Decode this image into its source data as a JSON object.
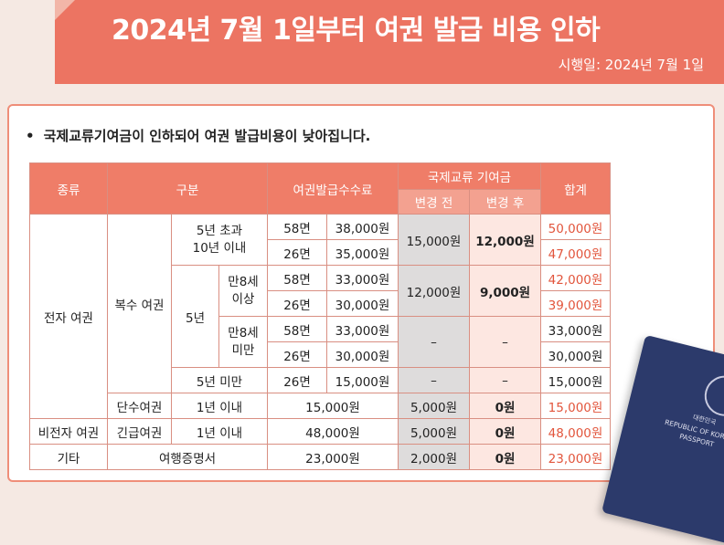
{
  "header": {
    "title": "2024년 7월 1일부터 여권 발급 비용 인하",
    "effective_date": "시행일: 2024년 7월 1일"
  },
  "notice": {
    "bullet": "•",
    "text": "국제교류기여금이 인하되어 여권 발급비용이 낮아집니다."
  },
  "table": {
    "headers": {
      "type": "종류",
      "category": "구분",
      "issue_fee": "여권발급수수료",
      "contribution": "국제교류 기여금",
      "before": "변경 전",
      "after": "변경 후",
      "total": "합계"
    },
    "labels": {
      "electronic": "전자 여권",
      "multi": "복수 여권",
      "over5": "5년 초과\n10년 이내",
      "five_years": "5년",
      "age8_over": "만8세\n이상",
      "age8_under": "만8세\n미만",
      "under5": "5년 미만",
      "single": "단수여권",
      "within1_single": "1년 이내",
      "non_electronic": "비전자 여권",
      "emergency": "긴급여권",
      "within1_emergency": "1년 이내",
      "other": "기타",
      "travel_cert": "여행증명서"
    },
    "rows": [
      {
        "pages": "58면",
        "fee": "38,000원",
        "before": "15,000원",
        "after": "12,000원",
        "total": "50,000원"
      },
      {
        "pages": "26면",
        "fee": "35,000원",
        "total": "47,000원"
      },
      {
        "pages": "58면",
        "fee": "33,000원",
        "before": "12,000원",
        "after": "9,000원",
        "total": "42,000원"
      },
      {
        "pages": "26면",
        "fee": "30,000원",
        "total": "39,000원"
      },
      {
        "pages": "58면",
        "fee": "33,000원",
        "before": "–",
        "after": "–",
        "total": "33,000원"
      },
      {
        "pages": "26면",
        "fee": "30,000원",
        "total": "30,000원"
      },
      {
        "pages": "26면",
        "fee": "15,000원",
        "before": "–",
        "after": "–",
        "total": "15,000원"
      },
      {
        "fee": "15,000원",
        "before": "5,000원",
        "after": "0원",
        "total": "15,000원"
      },
      {
        "fee": "48,000원",
        "before": "5,000원",
        "after": "0원",
        "total": "48,000원"
      },
      {
        "fee": "23,000원",
        "before": "2,000원",
        "after": "0원",
        "total": "23,000원"
      }
    ]
  },
  "passport": {
    "korean": "대한민국",
    "republic": "REPUBLIC OF KOREA",
    "word": "PASSPORT"
  },
  "colors": {
    "accent": "#ec7462",
    "total_text": "#e2553c",
    "grey_cell": "#dedcdc",
    "pink_cell": "#fde7e1"
  }
}
